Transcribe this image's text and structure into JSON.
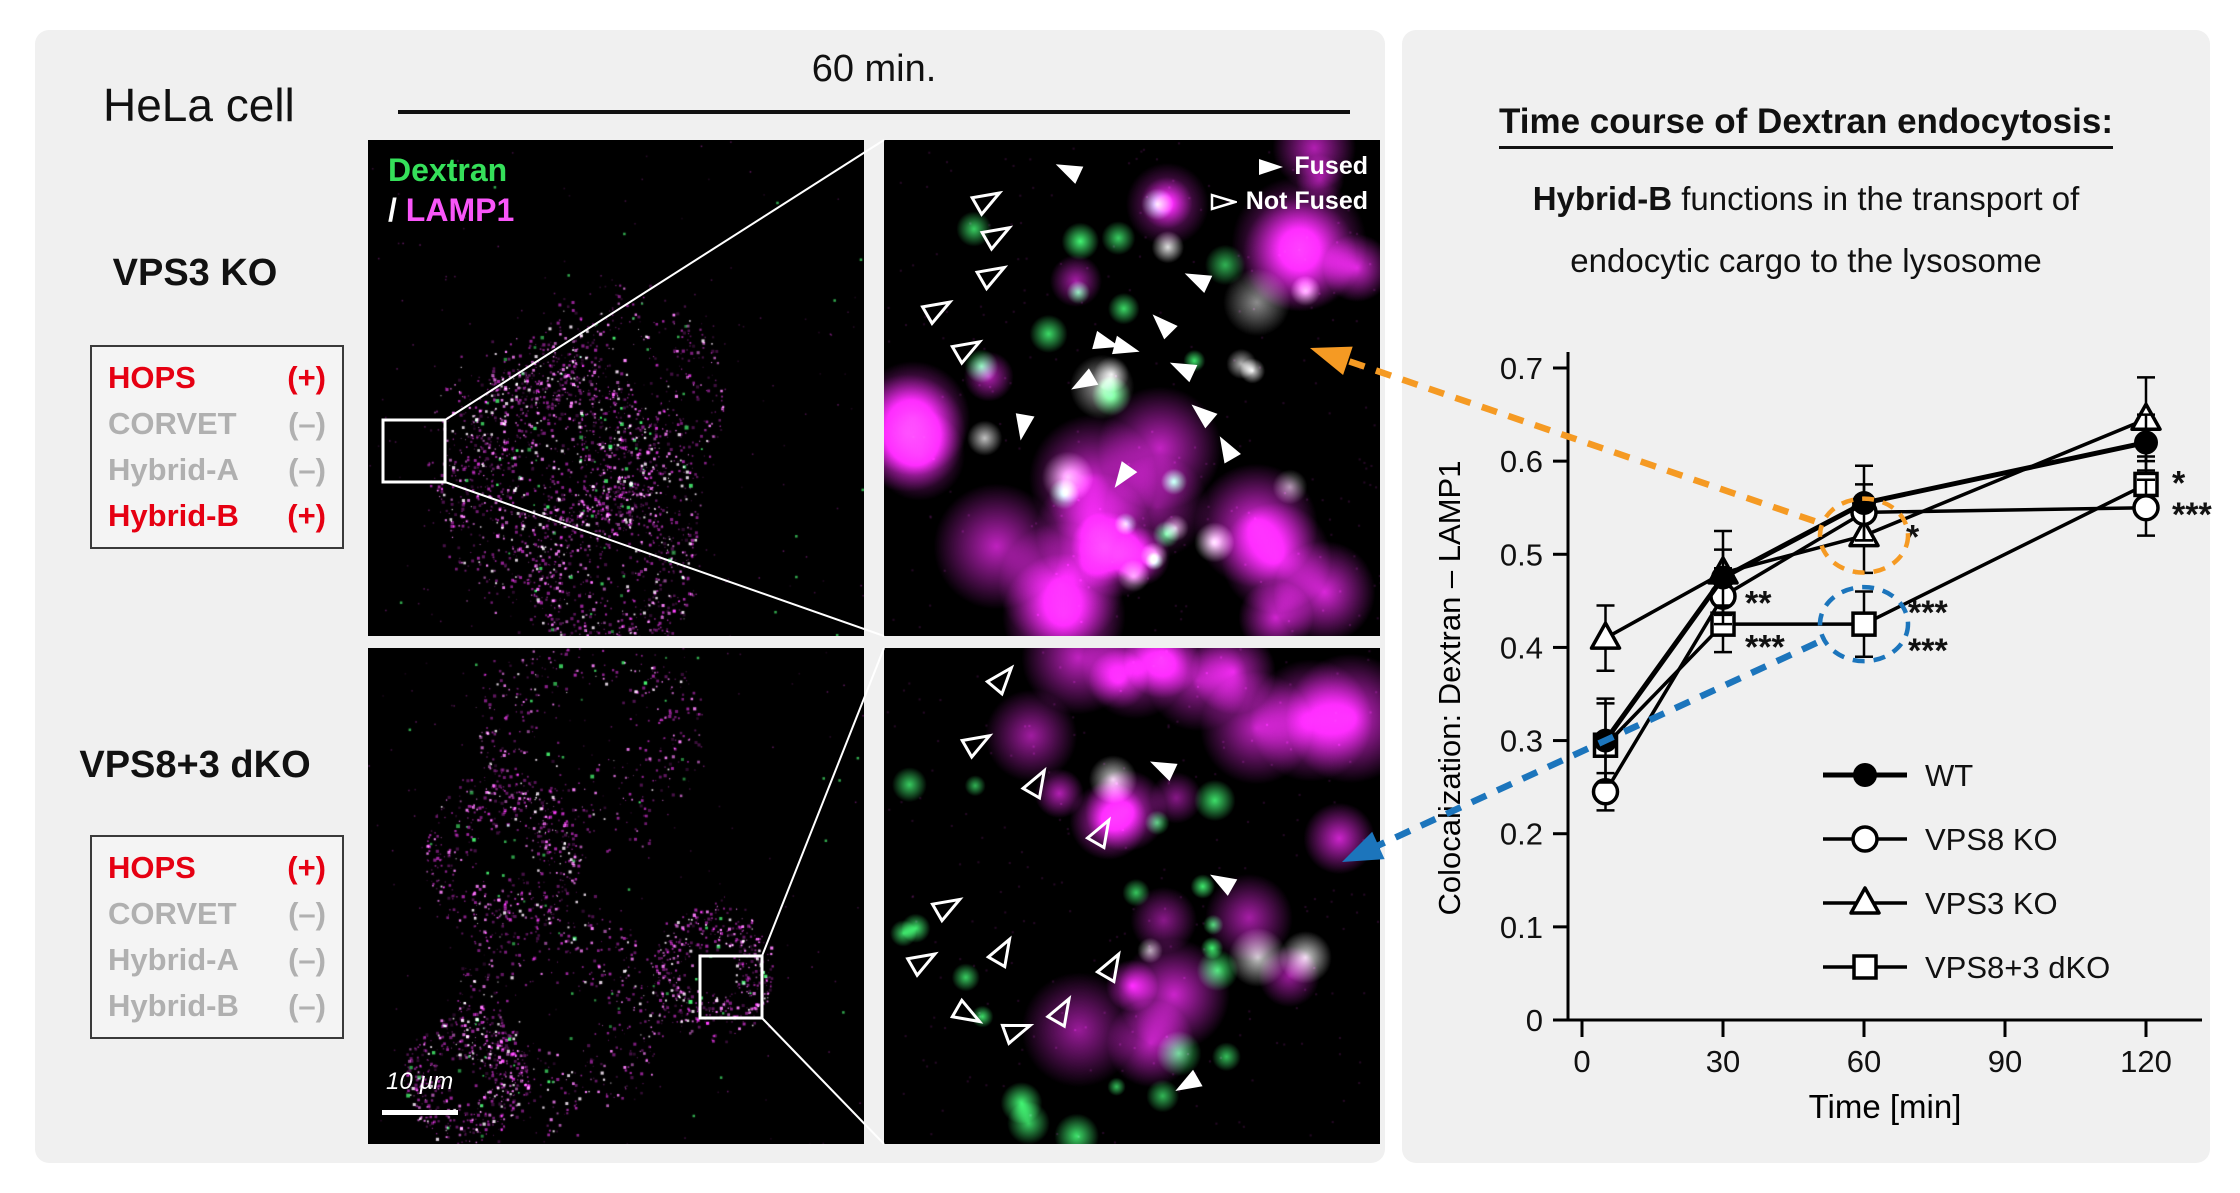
{
  "left_panel": {
    "cell_label": "HeLa cell",
    "time_label": "60 min.",
    "image_labels": {
      "dextran": "Dextran",
      "slash": "/",
      "lamp1": "LAMP1"
    },
    "scale_bar_label": "10 µm",
    "zoom_legend": {
      "fused": "Fused",
      "not_fused": "Not Fused"
    },
    "conditions": [
      {
        "name": "VPS3 KO",
        "complexes": [
          {
            "name": "HOPS",
            "sign": "(+)",
            "active": true
          },
          {
            "name": "CORVET",
            "sign": "(–)",
            "active": false
          },
          {
            "name": "Hybrid-A",
            "sign": "(–)",
            "active": false
          },
          {
            "name": "Hybrid-B",
            "sign": "(+)",
            "active": true
          }
        ]
      },
      {
        "name": "VPS8+3 dKO",
        "complexes": [
          {
            "name": "HOPS",
            "sign": "(+)",
            "active": true
          },
          {
            "name": "CORVET",
            "sign": "(–)",
            "active": false
          },
          {
            "name": "Hybrid-A",
            "sign": "(–)",
            "active": false
          },
          {
            "name": "Hybrid-B",
            "sign": "(–)",
            "active": false
          }
        ]
      }
    ]
  },
  "right_panel": {
    "title": "Time course of Dextran endocytosis:",
    "subtitle_bold": "Hybrid-B",
    "subtitle_rest": " functions in the transport of",
    "subtitle_line2": "endocytic cargo to the lysosome"
  },
  "colors": {
    "panel_bg": "#f0f0f0",
    "dextran_green": "#35e05a",
    "lamp1_magenta": "#f956f9",
    "active_red": "#e60012",
    "inactive_gray": "#b0b0b0",
    "highlight_orange": "#F59A23",
    "highlight_blue": "#1C75BC"
  },
  "chart_data": {
    "type": "line",
    "title": "Time course of Dextran endocytosis:",
    "xlabel": "Time [min]",
    "ylabel": "Colocalization: Dextran – LAMP1",
    "x": [
      5,
      30,
      60,
      120
    ],
    "xticks": [
      0,
      30,
      60,
      90,
      120
    ],
    "yticks": [
      0,
      0.1,
      0.2,
      0.3,
      0.4,
      0.5,
      0.6,
      0.7
    ],
    "xlim": [
      0,
      132
    ],
    "ylim": [
      0,
      0.7
    ],
    "grid": false,
    "legend_position": "lower right",
    "series": [
      {
        "name": "WT",
        "marker": "circle-filled",
        "values": [
          0.3,
          0.475,
          0.555,
          0.62
        ],
        "errors": [
          0.045,
          0.03,
          0.04,
          0.03
        ]
      },
      {
        "name": "VPS8 KO",
        "marker": "circle-open",
        "values": [
          0.245,
          0.455,
          0.545,
          0.55
        ],
        "errors": [
          0.02,
          0.03,
          0.03,
          0.03
        ]
      },
      {
        "name": "VPS3 KO",
        "marker": "triangle-open",
        "values": [
          0.41,
          0.48,
          0.52,
          0.645
        ],
        "errors": [
          0.035,
          0.045,
          0.04,
          0.045
        ]
      },
      {
        "name": "VPS8+3 dKO",
        "marker": "square-open",
        "values": [
          0.295,
          0.425,
          0.425,
          0.575
        ],
        "errors": [
          0.045,
          0.03,
          0.035,
          0.03
        ]
      }
    ],
    "annotations": [
      {
        "x": 30,
        "y": 0.447,
        "text": "**",
        "dx": 22
      },
      {
        "x": 30,
        "y": 0.4,
        "text": "***",
        "dx": 22
      },
      {
        "x": 60,
        "y": 0.518,
        "text": "*",
        "dx": 42
      },
      {
        "x": 60,
        "y": 0.437,
        "text": "***",
        "dx": 44
      },
      {
        "x": 60,
        "y": 0.396,
        "text": "***",
        "dx": 44
      },
      {
        "x": 120,
        "y": 0.576,
        "text": "*",
        "dx": 26
      },
      {
        "x": 120,
        "y": 0.542,
        "text": "***",
        "dx": 26
      }
    ],
    "highlights": [
      {
        "x": 60,
        "y": 0.52,
        "series": "VPS3 KO",
        "color": "#F59A23",
        "target": "top-zoom-panel"
      },
      {
        "x": 60,
        "y": 0.425,
        "series": "VPS8+3 dKO",
        "color": "#1C75BC",
        "target": "bottom-zoom-panel"
      }
    ]
  },
  "microscopy": {
    "top_right_arrows": {
      "filled": [
        [
          37,
          6,
          205
        ],
        [
          63,
          28,
          205
        ],
        [
          56,
          37,
          225
        ],
        [
          45,
          41,
          15
        ],
        [
          49,
          42,
          15
        ],
        [
          40,
          49,
          150
        ],
        [
          60,
          46,
          205
        ],
        [
          64,
          55,
          220
        ],
        [
          69,
          62,
          240
        ],
        [
          28,
          58,
          100
        ],
        [
          48,
          68,
          125
        ]
      ],
      "open": [
        [
          21,
          12,
          330
        ],
        [
          23,
          19,
          330
        ],
        [
          22,
          27,
          330
        ],
        [
          11,
          34,
          330
        ],
        [
          17,
          42,
          330
        ]
      ]
    },
    "bottom_right_arrows": {
      "filled": [
        [
          56,
          24,
          205
        ],
        [
          68,
          47,
          210
        ],
        [
          61,
          88,
          150
        ]
      ],
      "open": [
        [
          24,
          6,
          310
        ],
        [
          19,
          19,
          330
        ],
        [
          31,
          27,
          300
        ],
        [
          44,
          37,
          300
        ],
        [
          13,
          52,
          330
        ],
        [
          8,
          63,
          330
        ],
        [
          24,
          61,
          300
        ],
        [
          17,
          74,
          30
        ],
        [
          27,
          77,
          340
        ],
        [
          36,
          73,
          300
        ],
        [
          46,
          64,
          300
        ]
      ]
    }
  }
}
